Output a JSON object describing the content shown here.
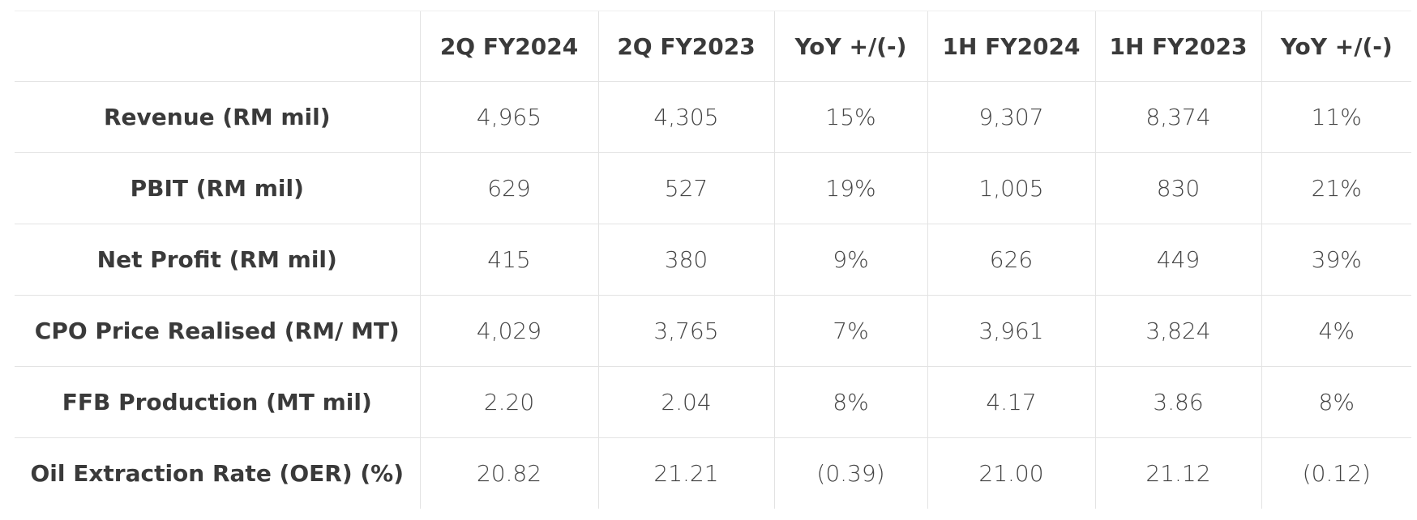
{
  "table": {
    "columns": [
      "2Q FY2024",
      "2Q FY2023",
      "YoY +/(-)",
      "1H FY2024",
      "1H FY2023",
      "YoY +/(-)"
    ],
    "rows": [
      [
        "Revenue (RM mil)",
        "4,965",
        "4,305",
        "15%",
        "9,307",
        "8,374",
        "11%"
      ],
      [
        "PBIT (RM mil)",
        "629",
        "527",
        "19%",
        "1,005",
        "830",
        "21%"
      ],
      [
        "Net Profit (RM mil)",
        "415",
        "380",
        "9%",
        "626",
        "449",
        "39%"
      ],
      [
        "CPO Price Realised (RM/ MT)",
        "4,029",
        "3,765",
        "7%",
        "3,961",
        "3,824",
        "4%"
      ],
      [
        "FFB Production (MT mil)",
        "2.20",
        "2.04",
        "8%",
        "4.17",
        "3.86",
        "8%"
      ],
      [
        "Oil Extraction Rate (OER) (%)",
        "20.82",
        "21.21",
        "(0.39)",
        "21.00",
        "21.12",
        "(0.12)"
      ]
    ]
  }
}
